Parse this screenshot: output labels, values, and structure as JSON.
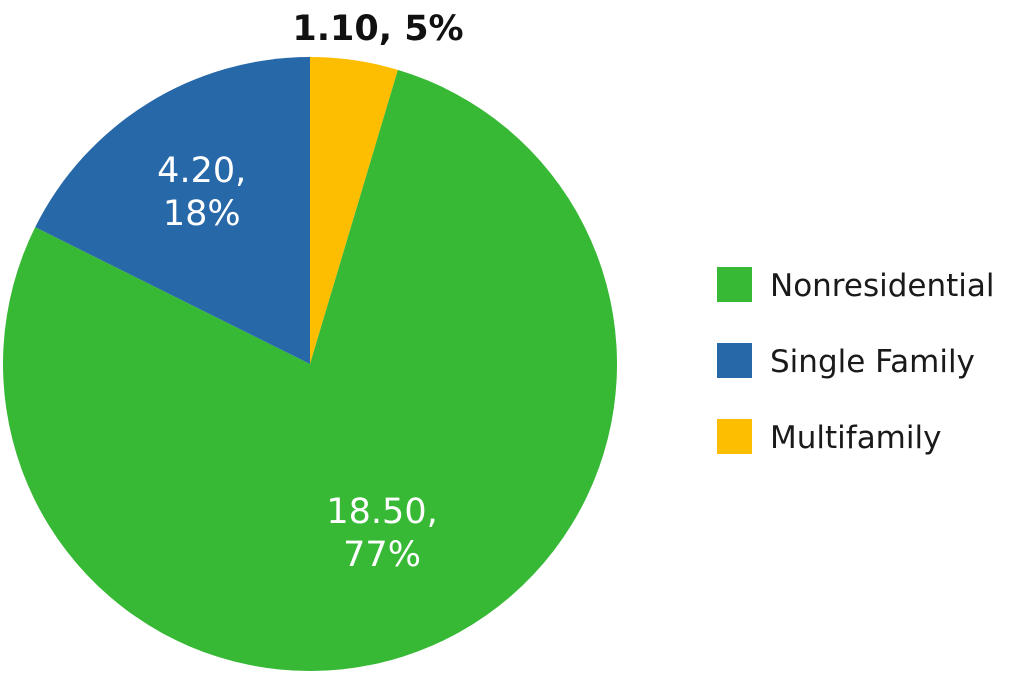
{
  "chart_data": {
    "type": "pie",
    "title": "",
    "slices": [
      {
        "name": "Multifamily",
        "value": 1.1,
        "percent": "5%",
        "value_label": "1.10,",
        "percent_label": "5%",
        "color": "#FDBD00",
        "label_color": "#111111",
        "label_position": "outside"
      },
      {
        "name": "Nonresidential",
        "value": 18.5,
        "percent": "77%",
        "value_label": "18.50,",
        "percent_label": "77%",
        "color": "#37B935",
        "label_color": "#ffffff",
        "label_position": "inside"
      },
      {
        "name": "Single Family",
        "value": 4.2,
        "percent": "18%",
        "value_label": "4.20,",
        "percent_label": "18%",
        "color": "#2668A8",
        "label_color": "#ffffff",
        "label_position": "inside"
      }
    ],
    "legend": {
      "placement": "right",
      "entries": [
        {
          "name": "Nonresidential",
          "color": "#37B935"
        },
        {
          "name": "Single Family",
          "color": "#2668A8"
        },
        {
          "name": "Multifamily",
          "color": "#FDBD00"
        }
      ]
    }
  }
}
